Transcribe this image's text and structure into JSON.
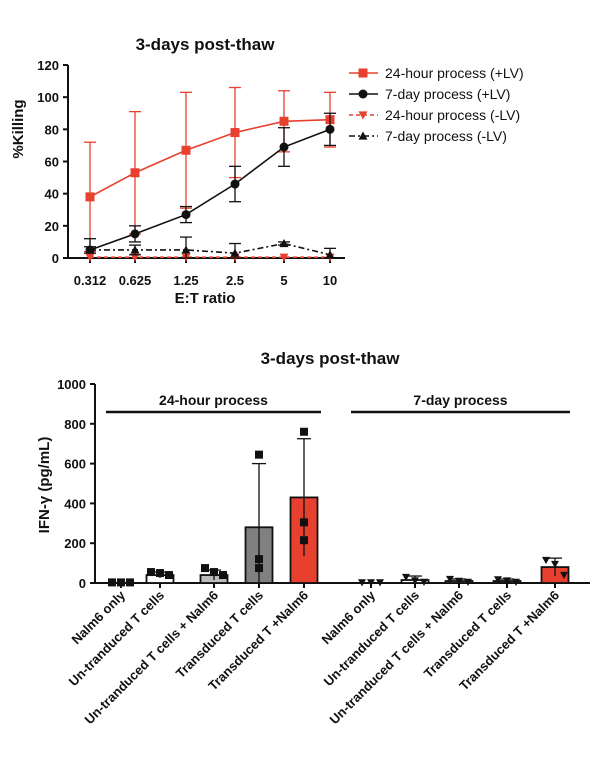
{
  "chart_data": [
    {
      "type": "line",
      "title": "3-days post-thaw",
      "xlabel": "E:T ratio",
      "ylabel": "%Killing",
      "categories": [
        "0.312",
        "0.625",
        "1.25",
        "2.5",
        "5",
        "10"
      ],
      "ylim": [
        0,
        120
      ],
      "yticks": [
        0,
        20,
        40,
        60,
        80,
        100,
        120
      ],
      "legend_position": "right",
      "series": [
        {
          "name": "24-hour process (+LV)",
          "values": [
            38,
            53,
            67,
            78,
            85,
            86
          ],
          "errors": [
            34,
            38,
            36,
            28,
            19,
            17
          ],
          "color": "#e8402e",
          "marker": "square",
          "line": "solid"
        },
        {
          "name": "7-day process (+LV)",
          "values": [
            5,
            15,
            27,
            46,
            69,
            80
          ],
          "errors": [
            7,
            5,
            5,
            11,
            12,
            10
          ],
          "color": "#111111",
          "marker": "circle",
          "line": "solid"
        },
        {
          "name": "24-hour process (-LV)",
          "values": [
            0.5,
            0.5,
            0.5,
            0.5,
            0.5,
            0.5
          ],
          "errors": [
            0,
            0,
            0,
            0,
            0,
            0
          ],
          "color": "#e8402e",
          "marker": "triangle-down",
          "line": "dashed"
        },
        {
          "name": "7-day process (-LV)",
          "values": [
            5,
            5,
            5,
            3,
            9,
            2
          ],
          "errors": [
            2,
            3,
            8,
            6,
            1,
            4
          ],
          "color": "#111111",
          "marker": "triangle-up",
          "line": "dashdot"
        }
      ]
    },
    {
      "type": "bar",
      "title": "3-days post-thaw",
      "xlabel": "",
      "ylabel": "IFN-γ (pg/mL)",
      "ylim": [
        0,
        1000
      ],
      "yticks": [
        0,
        200,
        400,
        600,
        800,
        1000
      ],
      "groups": [
        {
          "label": "24-hour process",
          "marker": "square"
        },
        {
          "label": "7-day process",
          "marker": "triangle-down"
        }
      ],
      "categories": [
        "Nalm6 only",
        "Un-tranduced T cells",
        "Un-tranduced T cells + Nalm6",
        "Transduced T cells",
        "Transduced T +Nalm6",
        "Nalm6 only",
        "Un-tranduced T cells",
        "Un-tranduced T cells + Nalm6",
        "Transduced T cells",
        "Transduced T +Nalm6"
      ],
      "values": [
        0,
        40,
        40,
        280,
        430,
        0,
        15,
        10,
        10,
        80
      ],
      "errors": [
        0,
        15,
        25,
        320,
        295,
        0,
        20,
        10,
        10,
        45
      ],
      "points": [
        [
          3,
          3,
          3
        ],
        [
          55,
          50,
          40
        ],
        [
          75,
          55,
          40
        ],
        [
          645,
          120,
          75
        ],
        [
          760,
          305,
          215
        ],
        [
          3,
          3,
          3
        ],
        [
          30,
          12,
          5
        ],
        [
          20,
          10,
          5
        ],
        [
          18,
          12,
          5
        ],
        [
          115,
          95,
          40
        ]
      ],
      "bar_colors": [
        "#ffffff",
        "#ffffff",
        "#bdbdbd",
        "#808080",
        "#e8402e",
        "#ffffff",
        "#ffffff",
        "#bdbdbd",
        "#808080",
        "#e8402e"
      ]
    }
  ]
}
